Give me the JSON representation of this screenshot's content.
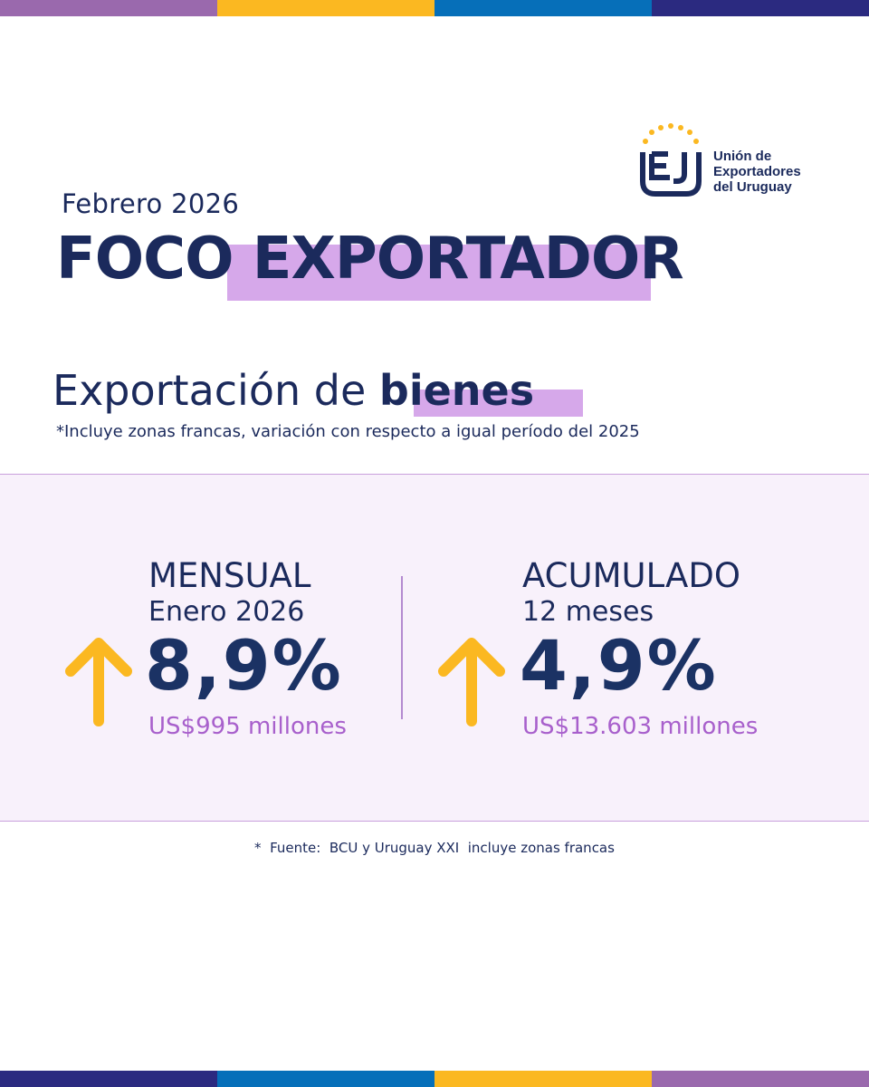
{
  "colors": {
    "navy": "#1b2a5c",
    "highlight": "#d6a8ea",
    "panel_bg": "#f8f1fb",
    "accent_purple": "#a860cc",
    "arrow_yellow": "#fbb821",
    "stripe_top": [
      "#9a69ad",
      "#fbb821",
      "#066fb9",
      "#2b2a80"
    ],
    "stripe_bottom": [
      "#2b2a80",
      "#066fb9",
      "#fbb821",
      "#9a69ad"
    ]
  },
  "logo": {
    "mark": "EJ",
    "name_lines": [
      "Unión de",
      "Exportadores",
      "del Uruguay"
    ]
  },
  "header": {
    "subtitle": "Febrero 2026",
    "title_part1": "FOCO",
    "title_part2": "EXPORTADOR"
  },
  "section": {
    "title_regular": "Exportación de",
    "title_bold": "bienes",
    "note": "*Incluye zonas francas, variación con respecto a igual período del 2025"
  },
  "metrics": [
    {
      "label": "MENSUAL",
      "period": "Enero 2026",
      "value": "8,9%",
      "amount": "US$995 millones",
      "trend_icon": "arrow-up-icon"
    },
    {
      "label": "ACUMULADO",
      "period": "12 meses",
      "value": "4,9%",
      "amount": "US$13.603 millones",
      "trend_icon": "arrow-up-icon"
    }
  ],
  "source": "*  Fuente:  BCU y Uruguay XXI  incluye zonas francas"
}
